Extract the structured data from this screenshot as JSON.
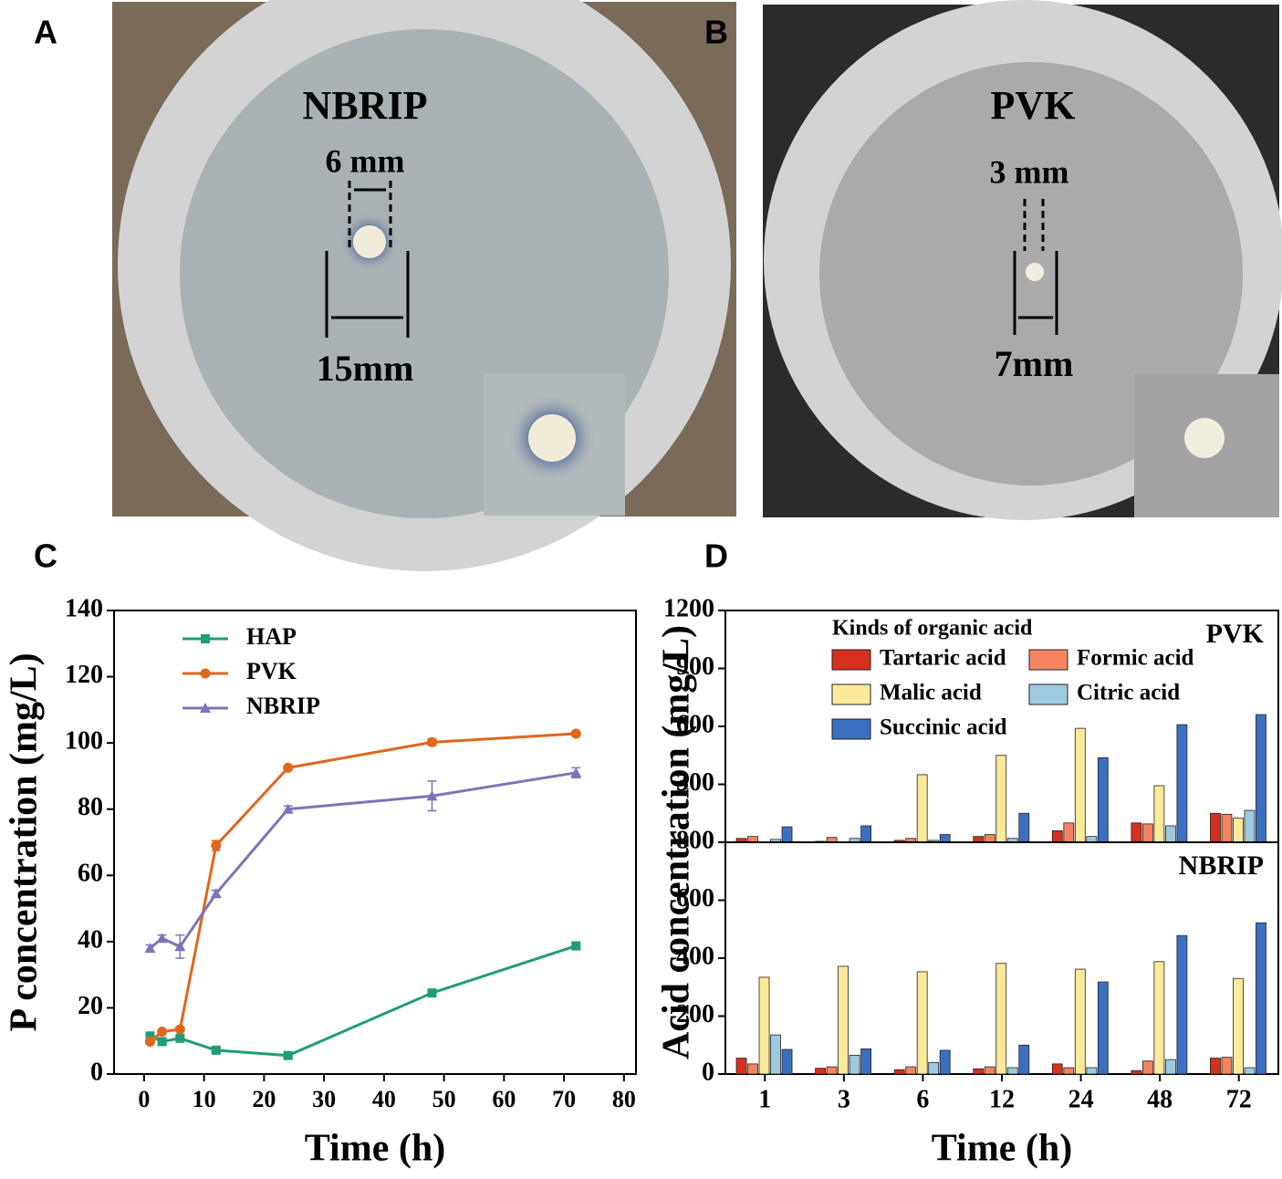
{
  "photos": [
    {
      "label": "A",
      "title": "NBRIP",
      "inner_label": "6 mm",
      "outer_label": "15mm"
    },
    {
      "label": "B",
      "title": "PVK",
      "inner_label": "3 mm",
      "outer_label": "7mm"
    }
  ],
  "chart_data": [
    {
      "type": "line",
      "label": "C",
      "xlabel": "Time (h)",
      "ylabel": "P concentration (mg/L)",
      "xlim": [
        -5,
        82
      ],
      "xticks": [
        0,
        10,
        20,
        30,
        40,
        50,
        60,
        70,
        80
      ],
      "ylim": [
        0,
        140
      ],
      "yticks": [
        0,
        20,
        40,
        60,
        80,
        100,
        120,
        140
      ],
      "legend": "upper left",
      "x": [
        1,
        3,
        6,
        12,
        24,
        48,
        72
      ],
      "series": [
        {
          "name": "HAP",
          "color": "#1f9d76",
          "marker": "square",
          "values": [
            11.5,
            9.8,
            10.8,
            7.2,
            5.6,
            24.5,
            38.7
          ],
          "errors": [
            0.5,
            0.5,
            0.5,
            0.5,
            0.5,
            0.6,
            0.6
          ]
        },
        {
          "name": "PVK",
          "color": "#e0661b",
          "marker": "circle",
          "values": [
            9.8,
            12.8,
            13.5,
            69,
            92.5,
            100.2,
            102.8
          ],
          "errors": [
            0.5,
            0.5,
            0.6,
            1.5,
            0.6,
            1,
            0.6
          ]
        },
        {
          "name": "NBRIP",
          "color": "#7b76b8",
          "marker": "triangle",
          "values": [
            38,
            41,
            38.5,
            54.5,
            80,
            84,
            91
          ],
          "errors": [
            1,
            1,
            3.5,
            1,
            1,
            4.5,
            1.5
          ]
        }
      ]
    },
    {
      "type": "bar",
      "label": "D",
      "xlabel": "Time (h)",
      "ylabel": "Acid concentration (mg/L)",
      "legend_title": "Kinds of organic acid",
      "categories": [
        "1",
        "3",
        "6",
        "12",
        "24",
        "48",
        "72"
      ],
      "series": [
        {
          "name": "Tartaric acid",
          "color": "#d7301f"
        },
        {
          "name": "Formic acid",
          "color": "#f4845f"
        },
        {
          "name": "Malic acid",
          "color": "#fde99a"
        },
        {
          "name": "Citric acid",
          "color": "#9ecae1"
        },
        {
          "name": "Succinic acid",
          "color": "#3b6fc1"
        }
      ],
      "panels": [
        {
          "title": "PVK",
          "ylim": [
            0,
            1200
          ],
          "yticks": [
            300,
            600,
            900,
            1200
          ],
          "values": [
            [
              20,
              5,
              10,
              30,
              60,
              100,
              150
            ],
            [
              30,
              25,
              20,
              40,
              100,
              95,
              145
            ],
            [
              0,
              0,
              350,
              450,
              590,
              293,
              125
            ],
            [
              15,
              20,
              10,
              20,
              30,
              85,
              165
            ],
            [
              80,
              85,
              40,
              150,
              438,
              609,
              661
            ]
          ]
        },
        {
          "title": "NBRIP",
          "ylim": [
            0,
            800
          ],
          "yticks": [
            0,
            200,
            400,
            600,
            800
          ],
          "values": [
            [
              55,
              20,
              15,
              18,
              35,
              12,
              55
            ],
            [
              35,
              25,
              25,
              25,
              22,
              45,
              58
            ],
            [
              334,
              372,
              353,
              382,
              362,
              388,
              330
            ],
            [
              135,
              65,
              40,
              22,
              22,
              50,
              22
            ],
            [
              85,
              87,
              82,
              100,
              318,
              478,
              522
            ]
          ]
        }
      ]
    }
  ]
}
